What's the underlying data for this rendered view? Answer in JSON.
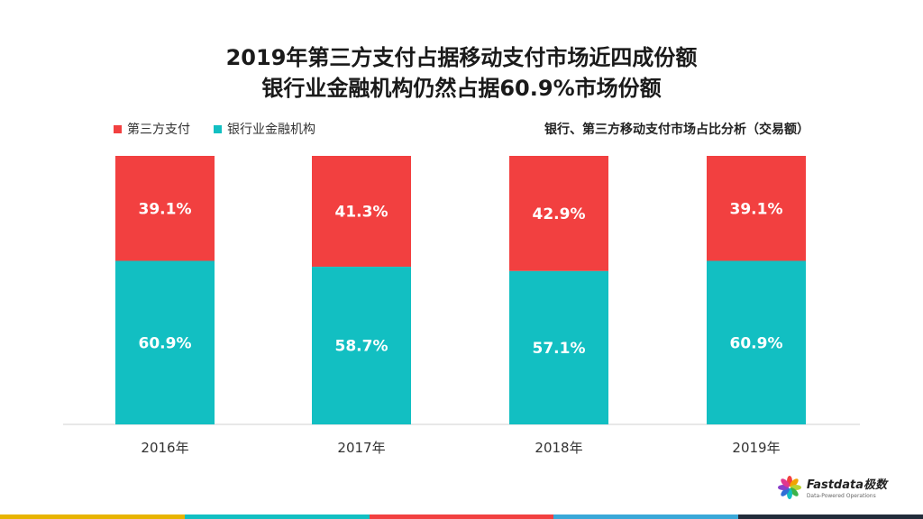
{
  "title_line1": "2019年第三方支付占据移动支付市场近四成份额",
  "title_line2": "银行业金融机构仍然占据60.9%市场份额",
  "subtitle": "银行、第三方移动支付市场占比分析（交易额）",
  "colors": {
    "third_party": "#f24040",
    "bank": "#12bfc2"
  },
  "logo": {
    "name": "Fastdata极数",
    "tagline": "Data-Powered Operations"
  },
  "chart_data": {
    "type": "bar",
    "stacked": true,
    "categories": [
      "2016年",
      "2017年",
      "2018年",
      "2019年"
    ],
    "series": [
      {
        "name": "第三方支付",
        "values": [
          39.1,
          41.3,
          42.9,
          39.1
        ],
        "labels": [
          "39.1%",
          "41.3%",
          "42.9%",
          "39.1%"
        ]
      },
      {
        "name": "银行业金融机构",
        "values": [
          60.9,
          58.7,
          57.1,
          60.9
        ],
        "labels": [
          "60.9%",
          "58.7%",
          "57.1%",
          "60.9%"
        ]
      }
    ],
    "ylim": [
      0,
      100
    ],
    "legend": "top-left",
    "grid": false
  }
}
